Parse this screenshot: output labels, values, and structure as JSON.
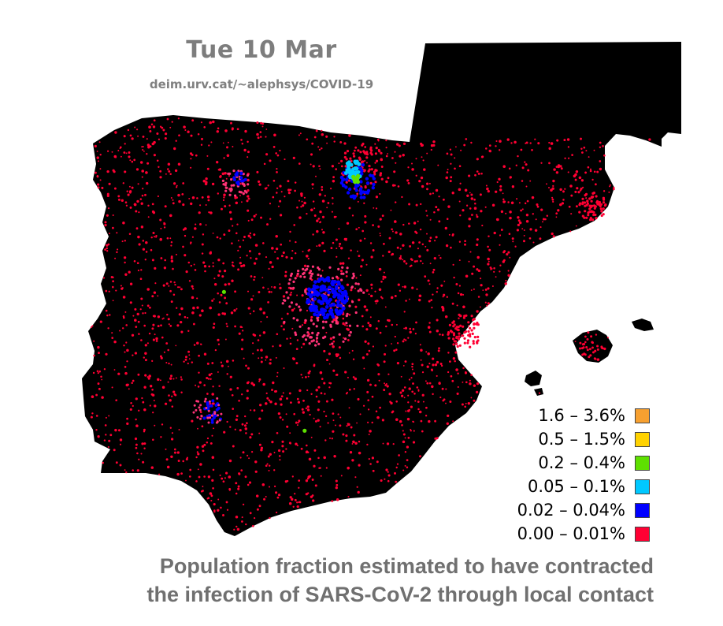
{
  "title": "Tue 10 Mar",
  "source": "deim.urv.cat/~alephsys/COVID-19",
  "caption": {
    "line1": "Population fraction estimated to have contracted",
    "line2": "the infection of SARS-CoV-2 through local contact"
  },
  "legend": [
    {
      "label": "1.6 – 3.6%",
      "color": "#f7a030"
    },
    {
      "label": "0.5 – 1.5%",
      "color": "#ffd200"
    },
    {
      "label": "0.2 – 0.4%",
      "color": "#5ee000"
    },
    {
      "label": "0.05 – 0.1%",
      "color": "#00c8ff"
    },
    {
      "label": "0.02 – 0.04%",
      "color": "#0000ff"
    },
    {
      "label": "0.00 – 0.01%",
      "color": "#ff0033"
    }
  ],
  "colors": {
    "land": "#000000",
    "sea": "#ffffff",
    "dot_low": "#ff0033",
    "dot_pink": "#ff3377"
  }
}
